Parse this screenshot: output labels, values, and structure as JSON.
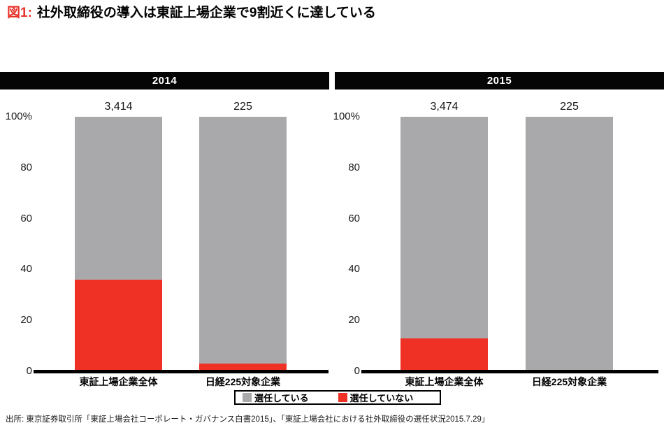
{
  "figure": {
    "label": "図1:",
    "title": "社外取締役の導入は東証上場企業で9割近くに達している"
  },
  "colors": {
    "appointed": "#a9a9ac",
    "not_appointed": "#ee3124",
    "header_bg": "#050505",
    "figure_label_red": "#e8332a",
    "axis_black": "#000000"
  },
  "legend": {
    "items": [
      {
        "label": "選任している",
        "color_key": "appointed"
      },
      {
        "label": "選任していない",
        "color_key": "not_appointed"
      }
    ]
  },
  "source": "出所: 東京証券取引所「東証上場会社コーポレート・ガバナンス白書2015」、「東証上場会社における社外取締役の選任状況2015.7.29」",
  "chart_data": [
    {
      "type": "bar",
      "stacked": true,
      "title": "2014",
      "categories": [
        "東証上場企業全体",
        "日経225対象企業"
      ],
      "totals": [
        "3,414",
        "225"
      ],
      "series": [
        {
          "name": "選任している",
          "values": [
            64,
            97
          ]
        },
        {
          "name": "選任していない",
          "values": [
            36,
            3
          ]
        }
      ],
      "ylim": [
        0,
        100
      ],
      "yticks": [
        0,
        20,
        40,
        60,
        80,
        100
      ],
      "ytick_labels": [
        "0",
        "20",
        "40",
        "60",
        "80",
        "100%"
      ],
      "grid": false,
      "legend_position": "bottom-center"
    },
    {
      "type": "bar",
      "stacked": true,
      "title": "2015",
      "categories": [
        "東証上場企業全体",
        "日経225対象企業"
      ],
      "totals": [
        "3,474",
        "225"
      ],
      "series": [
        {
          "name": "選任している",
          "values": [
            87,
            100
          ]
        },
        {
          "name": "選任していない",
          "values": [
            13,
            0
          ]
        }
      ],
      "ylim": [
        0,
        100
      ],
      "yticks": [
        0,
        20,
        40,
        60,
        80,
        100
      ],
      "ytick_labels": [
        "0",
        "20",
        "40",
        "60",
        "80",
        "100%"
      ],
      "grid": false,
      "legend_position": "bottom-center"
    }
  ]
}
